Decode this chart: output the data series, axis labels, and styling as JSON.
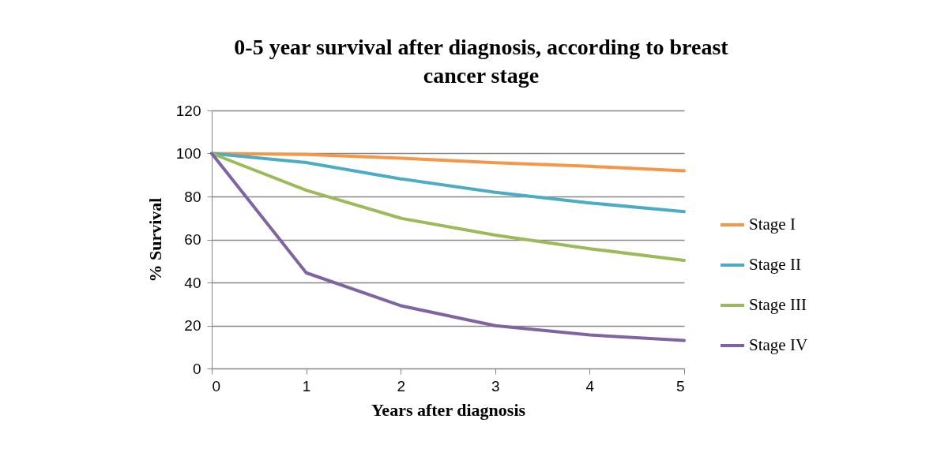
{
  "chart_data": {
    "type": "line",
    "title": "0-5 year survival after diagnosis, according to breast cancer stage",
    "xlabel": "Years after diagnosis",
    "ylabel": "% Survival",
    "x": [
      0,
      1,
      2,
      3,
      4,
      5
    ],
    "xlim": [
      0,
      5
    ],
    "xticks": [
      0,
      1,
      2,
      3,
      4,
      5
    ],
    "ylim": [
      0,
      120
    ],
    "yticks": [
      0,
      20,
      40,
      60,
      80,
      100,
      120
    ],
    "grid": "y",
    "legend": "right",
    "marker": "none",
    "line_style": "solid",
    "series": [
      {
        "name": "Stage I",
        "color": "#f79646",
        "values": [
          100,
          99.5,
          97.8,
          95.7,
          94,
          91.9
        ]
      },
      {
        "name": "Stage II",
        "color": "#4bacc6",
        "values": [
          100,
          95.8,
          88.2,
          81.9,
          77,
          72.9
        ]
      },
      {
        "name": "Stage III",
        "color": "#9bbb59",
        "values": [
          100,
          82.9,
          69.9,
          62,
          55.7,
          50.3
        ]
      },
      {
        "name": "Stage IV",
        "color": "#8064a2",
        "values": [
          100,
          44.5,
          29.2,
          19.9,
          15.6,
          13
        ]
      }
    ]
  }
}
